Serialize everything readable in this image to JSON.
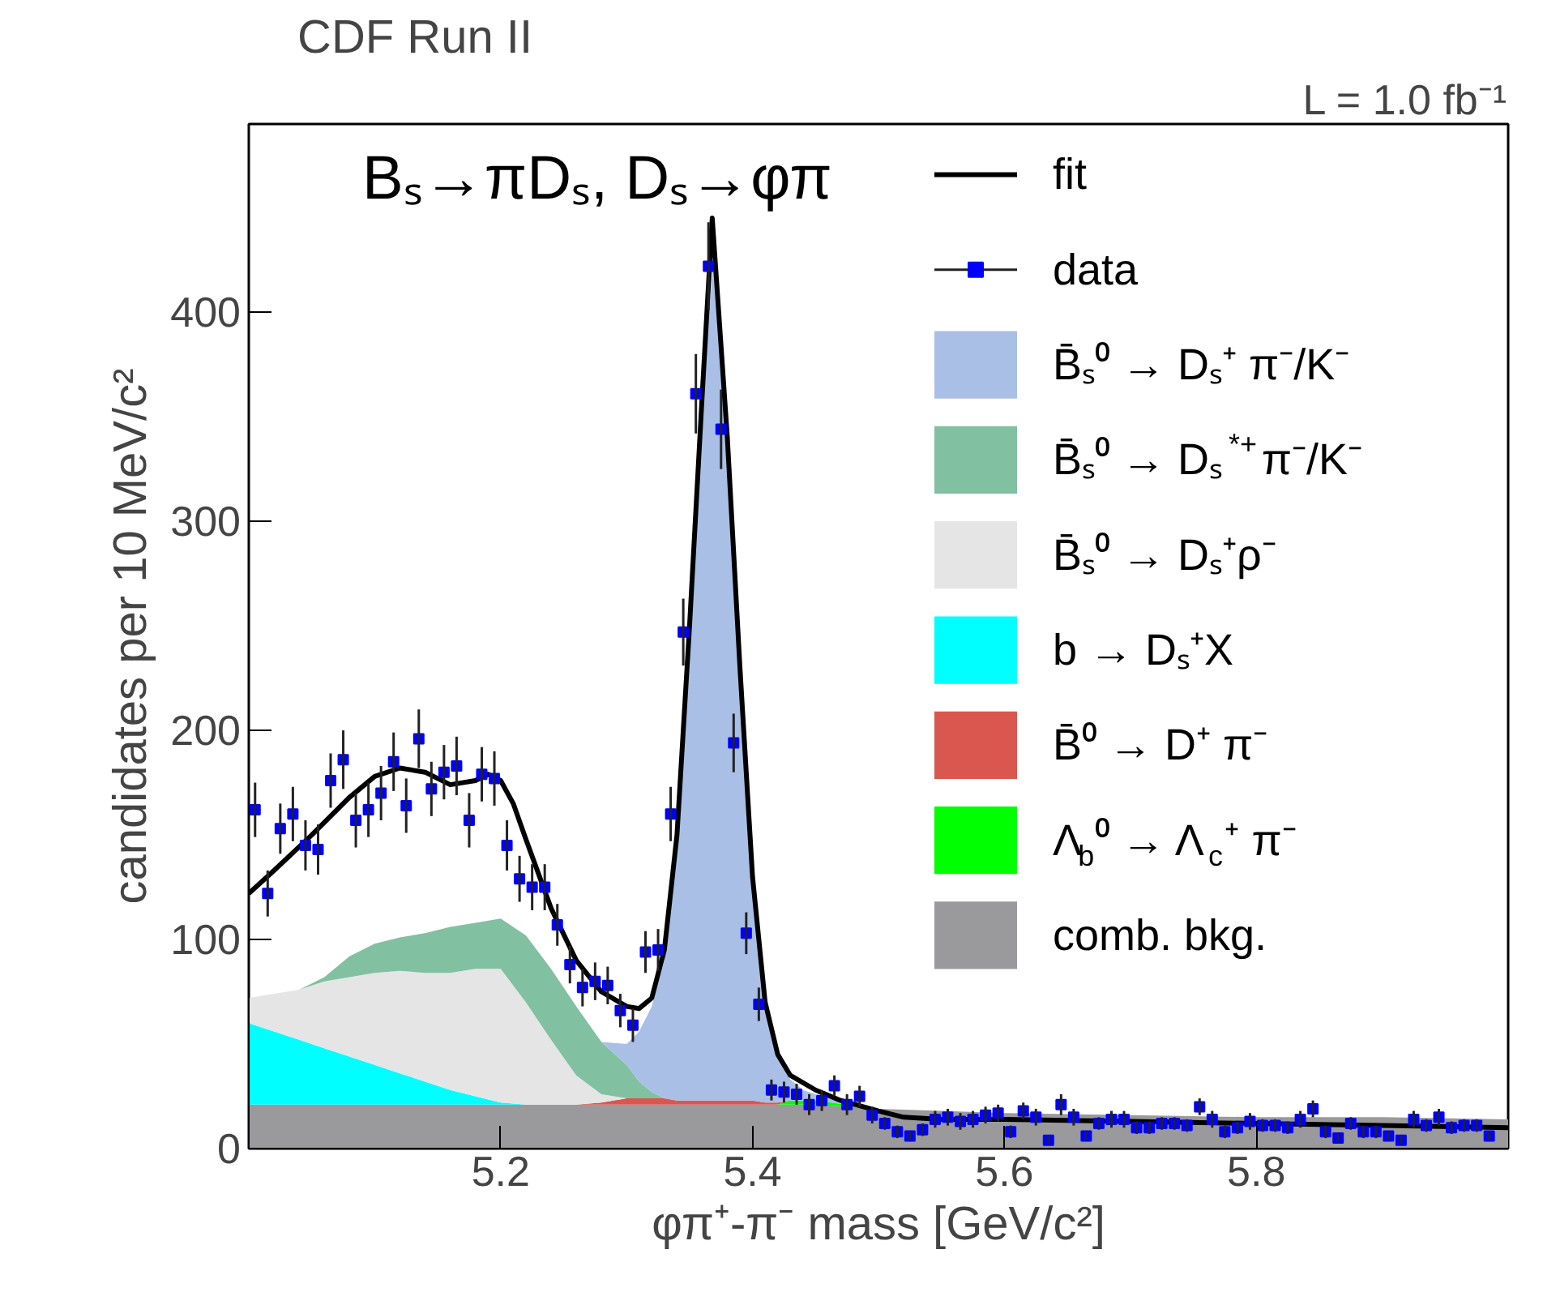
{
  "chart_data": {
    "type": "area",
    "title": "CDF Run II",
    "subtitle": "Bₛ→πDₛ, Dₛ→φπ",
    "xlabel": "φπ⁺-π⁻ mass [GeV/c²]",
    "ylabel": "candidates per 10 MeV/c²",
    "annotations": [
      "L = 1.0 fb⁻¹"
    ],
    "xlim": [
      5.0,
      6.0
    ],
    "ylim": [
      0,
      490
    ],
    "xticks": [
      5.2,
      5.4,
      5.6,
      5.8
    ],
    "yticks": [
      0,
      100,
      200,
      300,
      400
    ],
    "grid": false,
    "legend": "top right",
    "stacked": true,
    "series": [
      {
        "name": "data",
        "type": "scatter",
        "marker": "square",
        "color": "#0000ff",
        "x": [
          5.005,
          5.015,
          5.025,
          5.035,
          5.045,
          5.055,
          5.065,
          5.075,
          5.085,
          5.095,
          5.105,
          5.115,
          5.125,
          5.135,
          5.145,
          5.155,
          5.165,
          5.175,
          5.185,
          5.195,
          5.205,
          5.215,
          5.225,
          5.235,
          5.245,
          5.255,
          5.265,
          5.275,
          5.285,
          5.295,
          5.305,
          5.315,
          5.325,
          5.335,
          5.345,
          5.355,
          5.365,
          5.375,
          5.385,
          5.395,
          5.405,
          5.415,
          5.425,
          5.435,
          5.445,
          5.455,
          5.465,
          5.475,
          5.485,
          5.495,
          5.505,
          5.515,
          5.525,
          5.535,
          5.545,
          5.555,
          5.565,
          5.575,
          5.585,
          5.595,
          5.605,
          5.615,
          5.625,
          5.635,
          5.645,
          5.655,
          5.665,
          5.675,
          5.685,
          5.695,
          5.705,
          5.715,
          5.725,
          5.735,
          5.745,
          5.755,
          5.765,
          5.775,
          5.785,
          5.795,
          5.805,
          5.815,
          5.825,
          5.835,
          5.845,
          5.855,
          5.865,
          5.875,
          5.885,
          5.895,
          5.905,
          5.915,
          5.925,
          5.935,
          5.945,
          5.955,
          5.965,
          5.975,
          5.985
        ],
        "values": [
          162,
          122,
          153,
          160,
          145,
          143,
          176,
          186,
          157,
          162,
          170,
          185,
          164,
          196,
          172,
          180,
          183,
          157,
          179,
          177,
          145,
          129,
          125,
          125,
          107,
          88,
          77,
          80,
          78,
          66,
          59,
          94,
          95,
          160,
          247,
          361,
          422,
          344,
          194,
          103,
          69,
          28,
          27,
          26,
          21,
          23,
          30,
          21,
          25,
          16,
          12,
          8,
          6,
          9,
          14,
          15,
          13,
          14,
          16,
          17,
          8,
          18,
          15,
          4,
          21,
          15,
          6,
          12,
          14,
          14,
          10,
          10,
          12,
          12,
          11,
          20,
          14,
          8,
          10,
          13,
          11,
          11,
          10,
          14,
          19,
          8,
          5,
          12,
          8,
          8,
          6,
          4,
          14,
          11,
          15,
          10,
          11,
          11,
          6
        ],
        "errors": [
          13,
          11,
          12,
          13,
          12,
          12,
          13,
          14,
          13,
          13,
          13,
          14,
          13,
          14,
          13,
          13,
          14,
          13,
          13,
          13,
          12,
          11,
          11,
          11,
          10,
          9,
          9,
          9,
          9,
          8,
          8,
          10,
          10,
          13,
          16,
          19,
          21,
          19,
          14,
          10,
          8,
          5,
          5,
          5,
          5,
          5,
          5,
          5,
          5,
          4,
          3,
          3,
          2,
          3,
          4,
          4,
          4,
          4,
          4,
          4,
          3,
          4,
          4,
          2,
          5,
          4,
          2,
          3,
          4,
          4,
          3,
          3,
          3,
          3,
          3,
          4,
          4,
          3,
          3,
          4,
          3,
          3,
          3,
          4,
          4,
          3,
          2,
          3,
          3,
          3,
          2,
          2,
          4,
          3,
          4,
          3,
          3,
          3,
          2
        ]
      },
      {
        "name": "fit",
        "type": "line",
        "color": "#000000",
        "x": [
          5.0,
          5.02,
          5.05,
          5.08,
          5.1,
          5.12,
          5.14,
          5.16,
          5.18,
          5.19,
          5.2,
          5.21,
          5.22,
          5.24,
          5.26,
          5.28,
          5.3,
          5.31,
          5.32,
          5.33,
          5.34,
          5.35,
          5.36,
          5.368,
          5.38,
          5.39,
          5.4,
          5.41,
          5.42,
          5.43,
          5.45,
          5.47,
          5.5,
          5.52,
          5.55,
          5.6,
          5.7,
          5.8,
          5.9,
          6.0
        ],
        "values": [
          122,
          133,
          150,
          168,
          178,
          182,
          180,
          174,
          176,
          179,
          176,
          165,
          148,
          115,
          90,
          75,
          68,
          67,
          72,
          95,
          150,
          250,
          360,
          445,
          340,
          230,
          130,
          70,
          45,
          35,
          28,
          23,
          18,
          15,
          14,
          14,
          13,
          12,
          11,
          10
        ]
      },
      {
        "name": "comb. bkg.",
        "color": "#9a999b",
        "x": [
          5.0,
          5.02,
          5.04,
          5.06,
          5.08,
          5.1,
          5.12,
          5.14,
          5.16,
          5.18,
          5.2,
          5.22,
          5.24,
          5.26,
          5.28,
          5.3,
          5.31,
          5.32,
          5.33,
          5.34,
          5.35,
          5.36,
          5.37,
          5.38,
          5.39,
          5.4,
          5.41,
          5.42,
          5.43,
          5.44,
          5.45,
          5.5,
          5.55,
          5.6,
          5.7,
          5.8,
          5.9,
          6.0
        ],
        "values": [
          21,
          21,
          21,
          21,
          21,
          21,
          21,
          21,
          21,
          21,
          21,
          21,
          21,
          21,
          21,
          21,
          21,
          21,
          21,
          21,
          21,
          21,
          21,
          21,
          21,
          21,
          21,
          21,
          21,
          21,
          21,
          19,
          18,
          17,
          16,
          15,
          15,
          14
        ]
      },
      {
        "name": "Λ$_{b}$⁰ → Λ$_{c}$⁺ π⁻",
        "color": "#00ff00",
        "x": [
          5.0,
          5.02,
          5.04,
          5.06,
          5.08,
          5.1,
          5.12,
          5.14,
          5.16,
          5.18,
          5.2,
          5.22,
          5.24,
          5.26,
          5.28,
          5.3,
          5.31,
          5.32,
          5.33,
          5.34,
          5.35,
          5.36,
          5.37,
          5.38,
          5.39,
          5.4,
          5.41,
          5.42,
          5.43,
          5.44,
          5.45,
          5.5,
          5.55,
          5.6,
          5.7,
          5.8,
          5.9,
          6.0
        ],
        "values": [
          0,
          0,
          0,
          0,
          0,
          0,
          0,
          0,
          0,
          0,
          0,
          0,
          0,
          0,
          0,
          0,
          0,
          0,
          0,
          0,
          0,
          0,
          0,
          0,
          0,
          0,
          0,
          0,
          2,
          2,
          2,
          0,
          0,
          0,
          0,
          0,
          0,
          0
        ]
      },
      {
        "name": "B̄⁰ → D⁺ π⁻",
        "color": "#d9574f",
        "x": [
          5.0,
          5.02,
          5.04,
          5.06,
          5.08,
          5.1,
          5.12,
          5.14,
          5.16,
          5.18,
          5.2,
          5.22,
          5.24,
          5.26,
          5.28,
          5.3,
          5.31,
          5.32,
          5.33,
          5.34,
          5.35,
          5.36,
          5.37,
          5.38,
          5.39,
          5.4,
          5.41,
          5.42,
          5.43,
          5.44,
          5.45,
          5.5,
          5.55,
          5.6,
          5.7,
          5.8,
          5.9,
          6.0
        ],
        "values": [
          0,
          0,
          0,
          0,
          0,
          0,
          0,
          0,
          0,
          0,
          0,
          0,
          0,
          0,
          1,
          3,
          3,
          3,
          3,
          2,
          2,
          2,
          2,
          2,
          2,
          2,
          1,
          1,
          0,
          0,
          0,
          0,
          0,
          0,
          0,
          0,
          0,
          0
        ]
      },
      {
        "name": "b → Dₛ⁺X",
        "color": "#00ffff",
        "x": [
          5.0,
          5.02,
          5.04,
          5.06,
          5.08,
          5.1,
          5.12,
          5.14,
          5.16,
          5.18,
          5.2,
          5.22,
          5.24,
          5.26,
          5.28,
          5.3,
          5.31,
          5.32,
          5.33,
          5.34,
          5.35,
          5.36,
          5.37,
          5.38,
          5.39,
          5.4,
          5.41,
          5.42,
          5.43,
          5.44,
          5.45,
          5.5,
          5.55,
          5.6,
          5.7,
          5.8,
          5.9,
          6.0
        ],
        "values": [
          39,
          35,
          31,
          27,
          23,
          19,
          15,
          11,
          7,
          4,
          1,
          0,
          0,
          0,
          0,
          0,
          0,
          0,
          0,
          0,
          0,
          0,
          0,
          0,
          0,
          0,
          0,
          0,
          0,
          0,
          0,
          0,
          0,
          0,
          0,
          0,
          0,
          0
        ]
      },
      {
        "name": "B̄ₛ⁰ → Dₛ⁺ρ⁻",
        "color": "#e5e5e5",
        "x": [
          5.0,
          5.02,
          5.04,
          5.06,
          5.08,
          5.1,
          5.12,
          5.14,
          5.16,
          5.18,
          5.2,
          5.22,
          5.24,
          5.26,
          5.28,
          5.3,
          5.31,
          5.32,
          5.33,
          5.34,
          5.35,
          5.36,
          5.37,
          5.38,
          5.39,
          5.4,
          5.41,
          5.42,
          5.43,
          5.44,
          5.45,
          5.5,
          5.55,
          5.6,
          5.7,
          5.8,
          5.9,
          6.0
        ],
        "values": [
          12,
          18,
          24,
          32,
          38,
          44,
          49,
          52,
          56,
          61,
          64,
          49,
          31,
          14,
          4,
          0,
          0,
          0,
          0,
          0,
          0,
          0,
          0,
          0,
          0,
          0,
          0,
          0,
          0,
          0,
          0,
          0,
          0,
          0,
          0,
          0,
          0,
          0
        ]
      },
      {
        "name": "B̄ₛ⁰ → Dₛ$^{*+}$π⁻/K⁻",
        "color": "#82c0a2",
        "x": [
          5.0,
          5.02,
          5.04,
          5.06,
          5.08,
          5.1,
          5.12,
          5.14,
          5.16,
          5.18,
          5.2,
          5.22,
          5.24,
          5.26,
          5.28,
          5.3,
          5.31,
          5.32,
          5.33,
          5.34,
          5.35,
          5.36,
          5.37,
          5.38,
          5.39,
          5.4,
          5.41,
          5.42,
          5.43,
          5.44,
          5.45,
          5.5,
          5.55,
          5.6,
          5.7,
          5.8,
          5.9,
          6.0
        ],
        "values": [
          0,
          0,
          0,
          2,
          10,
          14,
          16,
          19,
          22,
          22,
          24,
          32,
          34,
          33,
          25,
          16,
          8,
          3,
          0,
          0,
          0,
          0,
          0,
          0,
          0,
          0,
          0,
          0,
          0,
          0,
          0,
          0,
          0,
          0,
          0,
          0,
          0,
          0
        ]
      },
      {
        "name": "B̄ₛ⁰ → Dₛ⁺ π⁻/K⁻",
        "color": "#aabfe5",
        "x": [
          5.0,
          5.02,
          5.04,
          5.06,
          5.08,
          5.1,
          5.12,
          5.14,
          5.16,
          5.18,
          5.2,
          5.22,
          5.24,
          5.26,
          5.28,
          5.3,
          5.31,
          5.32,
          5.33,
          5.34,
          5.35,
          5.36,
          5.37,
          5.38,
          5.39,
          5.4,
          5.41,
          5.42,
          5.43,
          5.44,
          5.45,
          5.5,
          5.55,
          5.6,
          5.7,
          5.8,
          5.9,
          6.0
        ],
        "values": [
          0,
          0,
          0,
          0,
          0,
          0,
          0,
          0,
          0,
          0,
          0,
          0,
          0,
          0,
          0,
          10,
          24,
          41,
          66,
          125,
          222,
          332,
          412,
          317,
          202,
          102,
          46,
          23,
          10,
          5,
          3,
          0,
          0,
          0,
          0,
          0,
          0,
          0
        ]
      }
    ]
  }
}
